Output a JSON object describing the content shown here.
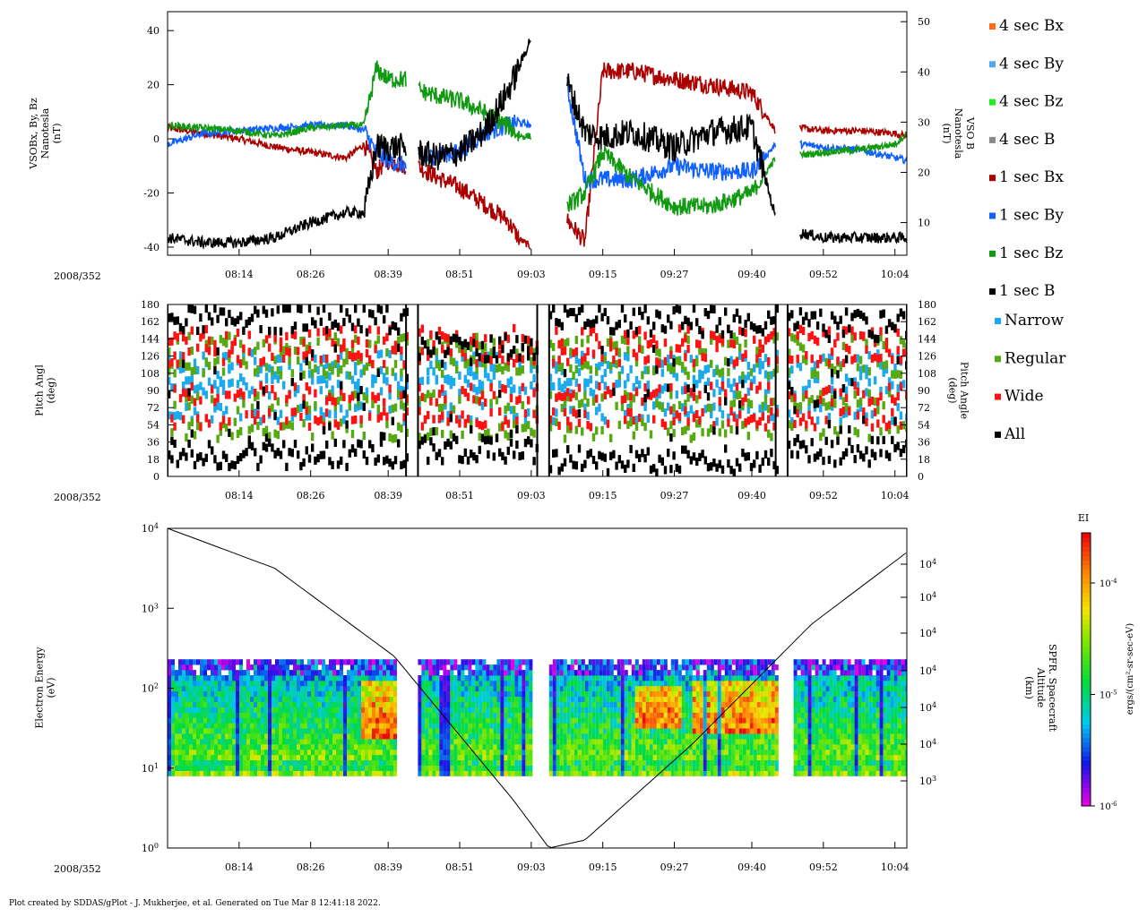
{
  "footer": "Plot created by SDDAS/gPlot - J. Mukherjee, et al.  Generated on Tue Mar 8 12:41:18 2022.",
  "time_ticks": [
    "08:14",
    "08:26",
    "08:39",
    "08:51",
    "09:03",
    "09:15",
    "09:27",
    "09:40",
    "09:52",
    "10:04"
  ],
  "time_range": [
    "08:02",
    "10:06"
  ],
  "colors": {
    "sec4_bx": "#ff6a1a",
    "sec4_by": "#4fa8f0",
    "sec4_bz": "#22ee22",
    "sec4_b": "#888888",
    "sec1_bx": "#aa0000",
    "sec1_by": "#1060ff",
    "sec1_bz": "#119911",
    "sec1_b": "#000000",
    "narrow": "#1aaaee",
    "regular": "#55aa11",
    "wide": "#ff1111",
    "all": "#000000"
  },
  "chart_data": [
    {
      "type": "line",
      "id": "panel-mag",
      "date_label": "2008/352",
      "ylabel_left": [
        "VSOBx, By, Bz",
        "Nanotesla",
        "(nT)"
      ],
      "ylabel_right": [
        "VSO B",
        "Nanotesla",
        "(nT)"
      ],
      "ylim_left": [
        -43,
        47
      ],
      "ylim_right": [
        3.5,
        52
      ],
      "yticks_left": [
        -40,
        -20,
        0,
        20,
        40
      ],
      "yticks_right": [
        10,
        20,
        30,
        40,
        50
      ],
      "legend": [
        "4 sec Bx",
        "4 sec By",
        "4 sec Bz",
        "4 sec B",
        "1 sec Bx",
        "1 sec By",
        "1 sec Bz",
        "1 sec B"
      ],
      "gaps": [
        [
          "08:42",
          "08:44"
        ],
        [
          "09:04",
          "09:06"
        ],
        [
          "09:44",
          "09:46"
        ],
        [
          "09:46",
          "09:48"
        ]
      ],
      "series": [
        {
          "name": "1 sec Bx",
          "axis": "left",
          "color": "sec1_bx",
          "x": [
            "08:02",
            "08:08",
            "08:14",
            "08:20",
            "08:26",
            "08:32",
            "08:35",
            "08:37",
            "08:39",
            "08:42",
            "08:44",
            "08:47",
            "08:51",
            "08:55",
            "08:59",
            "09:01",
            "09:03",
            "09:06",
            "09:09",
            "09:12",
            "09:15",
            "09:20",
            "09:27",
            "09:33",
            "09:40",
            "09:44",
            "09:48",
            "09:52",
            "09:58",
            "10:04",
            "10:06"
          ],
          "y": [
            4,
            2,
            0,
            -3,
            -5,
            -7,
            -2,
            -12,
            -8,
            -10,
            -10,
            -14,
            -18,
            -24,
            -30,
            -37,
            -40,
            null,
            -30,
            -38,
            25,
            25,
            22,
            20,
            17,
            3,
            4,
            3,
            3,
            2,
            1
          ]
        },
        {
          "name": "1 sec By",
          "axis": "left",
          "color": "sec1_by",
          "x": [
            "08:02",
            "08:08",
            "08:14",
            "08:20",
            "08:26",
            "08:32",
            "08:35",
            "08:37",
            "08:39",
            "08:42",
            "08:44",
            "08:47",
            "08:51",
            "08:55",
            "08:59",
            "09:01",
            "09:03",
            "09:06",
            "09:09",
            "09:12",
            "09:15",
            "09:20",
            "09:27",
            "09:33",
            "09:40",
            "09:44",
            "09:48",
            "09:52",
            "09:58",
            "10:04",
            "10:06"
          ],
          "y": [
            -2,
            2,
            3,
            4,
            5,
            5,
            3,
            -5,
            -8,
            -10,
            -8,
            -6,
            -5,
            2,
            5,
            6,
            5,
            null,
            20,
            -15,
            -15,
            -15,
            -10,
            -12,
            -12,
            -2,
            -2,
            -3,
            -4,
            -7,
            -8
          ]
        },
        {
          "name": "1 sec Bz",
          "axis": "left",
          "color": "sec1_bz",
          "x": [
            "08:02",
            "08:08",
            "08:14",
            "08:20",
            "08:26",
            "08:32",
            "08:35",
            "08:37",
            "08:39",
            "08:42",
            "08:44",
            "08:47",
            "08:51",
            "08:55",
            "08:59",
            "09:01",
            "09:03",
            "09:06",
            "09:09",
            "09:12",
            "09:15",
            "09:20",
            "09:27",
            "09:33",
            "09:40",
            "09:44",
            "09:48",
            "09:52",
            "09:58",
            "10:04",
            "10:06"
          ],
          "y": [
            5,
            4,
            3,
            1,
            4,
            5,
            5,
            26,
            22,
            22,
            18,
            16,
            14,
            10,
            5,
            1,
            1,
            null,
            -25,
            -20,
            -5,
            -15,
            -25,
            -25,
            -20,
            -7,
            -6,
            -5,
            -4,
            -2,
            2
          ]
        },
        {
          "name": "1 sec B",
          "axis": "right",
          "color": "sec1_b",
          "x": [
            "08:02",
            "08:08",
            "08:14",
            "08:20",
            "08:26",
            "08:32",
            "08:35",
            "08:37",
            "08:39",
            "08:42",
            "08:44",
            "08:47",
            "08:51",
            "08:55",
            "08:59",
            "09:01",
            "09:03",
            "09:06",
            "09:09",
            "09:12",
            "09:15",
            "09:20",
            "09:27",
            "09:33",
            "09:40",
            "09:44",
            "09:48",
            "09:52",
            "09:58",
            "10:04",
            "10:06"
          ],
          "y": [
            7,
            6,
            6,
            7,
            10,
            12,
            12,
            25,
            25,
            25,
            24,
            23,
            24,
            28,
            36,
            41,
            47,
            null,
            38,
            28,
            27,
            28,
            25,
            28,
            29,
            11,
            8,
            7,
            7,
            7,
            7
          ]
        }
      ]
    },
    {
      "type": "heatmap",
      "id": "panel-pitch",
      "date_label": "2008/352",
      "ylabel_left": [
        "Pitch Angl",
        "(deg)"
      ],
      "ylabel_right": [
        "Pitch Angle",
        "(deg)"
      ],
      "ylim": [
        0,
        180
      ],
      "yticks": [
        0,
        18,
        36,
        54,
        72,
        90,
        108,
        126,
        144,
        162,
        180
      ],
      "legend": [
        "Narrow",
        "Regular",
        "Wide",
        "All"
      ],
      "blocks": [
        {
          "start": "08:02",
          "end": "08:42",
          "upper_deg": 165,
          "lower_deg": 22
        },
        {
          "start": "08:44",
          "end": "09:04",
          "upper_deg": 132,
          "lower_deg": 28
        },
        {
          "start": "09:06",
          "end": "09:44",
          "upper_deg": 162,
          "lower_deg": 16
        },
        {
          "start": "09:46",
          "end": "10:06",
          "upper_deg": 158,
          "lower_deg": 25
        }
      ],
      "band_samples": [
        {
          "name": "Narrow",
          "color": "narrow",
          "centers_deg": [
            66,
            93,
            104,
            120
          ],
          "width_deg": 9
        },
        {
          "name": "Regular",
          "color": "regular",
          "centers_deg": [
            48,
            78,
            114,
            138
          ],
          "width_deg": 9
        },
        {
          "name": "Wide",
          "color": "wide",
          "centers_deg": [
            60,
            86,
            126,
            146
          ],
          "width_deg": 9
        }
      ]
    },
    {
      "type": "heatmap",
      "id": "panel-spectrogram",
      "date_label": "2008/352",
      "ylabel_left": [
        "Electron Energy",
        "(eV)"
      ],
      "ylabel_right": [
        "SPFR. Spacecraft",
        "Altitude",
        "(km)"
      ],
      "ylim_log10": [
        0,
        4
      ],
      "yticks_left": [
        {
          "base": "10",
          "exp": "0"
        },
        {
          "base": "10",
          "exp": "1"
        },
        {
          "base": "10",
          "exp": "2"
        },
        {
          "base": "10",
          "exp": "3"
        },
        {
          "base": "10",
          "exp": "4"
        }
      ],
      "yticks_right": [
        {
          "base": "10",
          "exp": "3"
        },
        {
          "base": "10",
          "exp": "4"
        },
        {
          "base": "10",
          "exp": "4"
        },
        {
          "base": "10",
          "exp": "4"
        },
        {
          "base": "10",
          "exp": "4"
        },
        {
          "base": "10",
          "exp": "4"
        },
        {
          "base": "10",
          "exp": "4"
        }
      ],
      "energy_range_ev": [
        8,
        230
      ],
      "data_blocks": [
        [
          "08:02",
          "08:40"
        ],
        [
          "08:44",
          "09:03"
        ],
        [
          "09:06",
          "09:44"
        ],
        [
          "09:47",
          "10:06"
        ]
      ],
      "altitude_curve": {
        "x": [
          "08:02",
          "08:20",
          "08:40",
          "09:00",
          "09:06",
          "09:12",
          "09:30",
          "09:50",
          "10:06"
        ],
        "y_log10_panel": [
          4.0,
          3.5,
          2.4,
          0.6,
          0.0,
          0.1,
          1.3,
          2.8,
          3.7
        ]
      },
      "hot_spots": [
        {
          "start": "08:34",
          "end": "08:40",
          "e_low": 20,
          "e_high": 120
        },
        {
          "start": "09:20",
          "end": "09:28",
          "e_low": 30,
          "e_high": 100
        },
        {
          "start": "09:30",
          "end": "09:44",
          "e_low": 25,
          "e_high": 110
        }
      ],
      "colorbar": {
        "title": "EI",
        "label": "ergs/(cm²-sr-sec-eV)",
        "ticks": [
          {
            "base": "10",
            "exp": "-6"
          },
          {
            "base": "10",
            "exp": "-5"
          },
          {
            "base": "10",
            "exp": "-4"
          }
        ],
        "range_log10": [
          -6,
          -3.55
        ]
      }
    }
  ]
}
